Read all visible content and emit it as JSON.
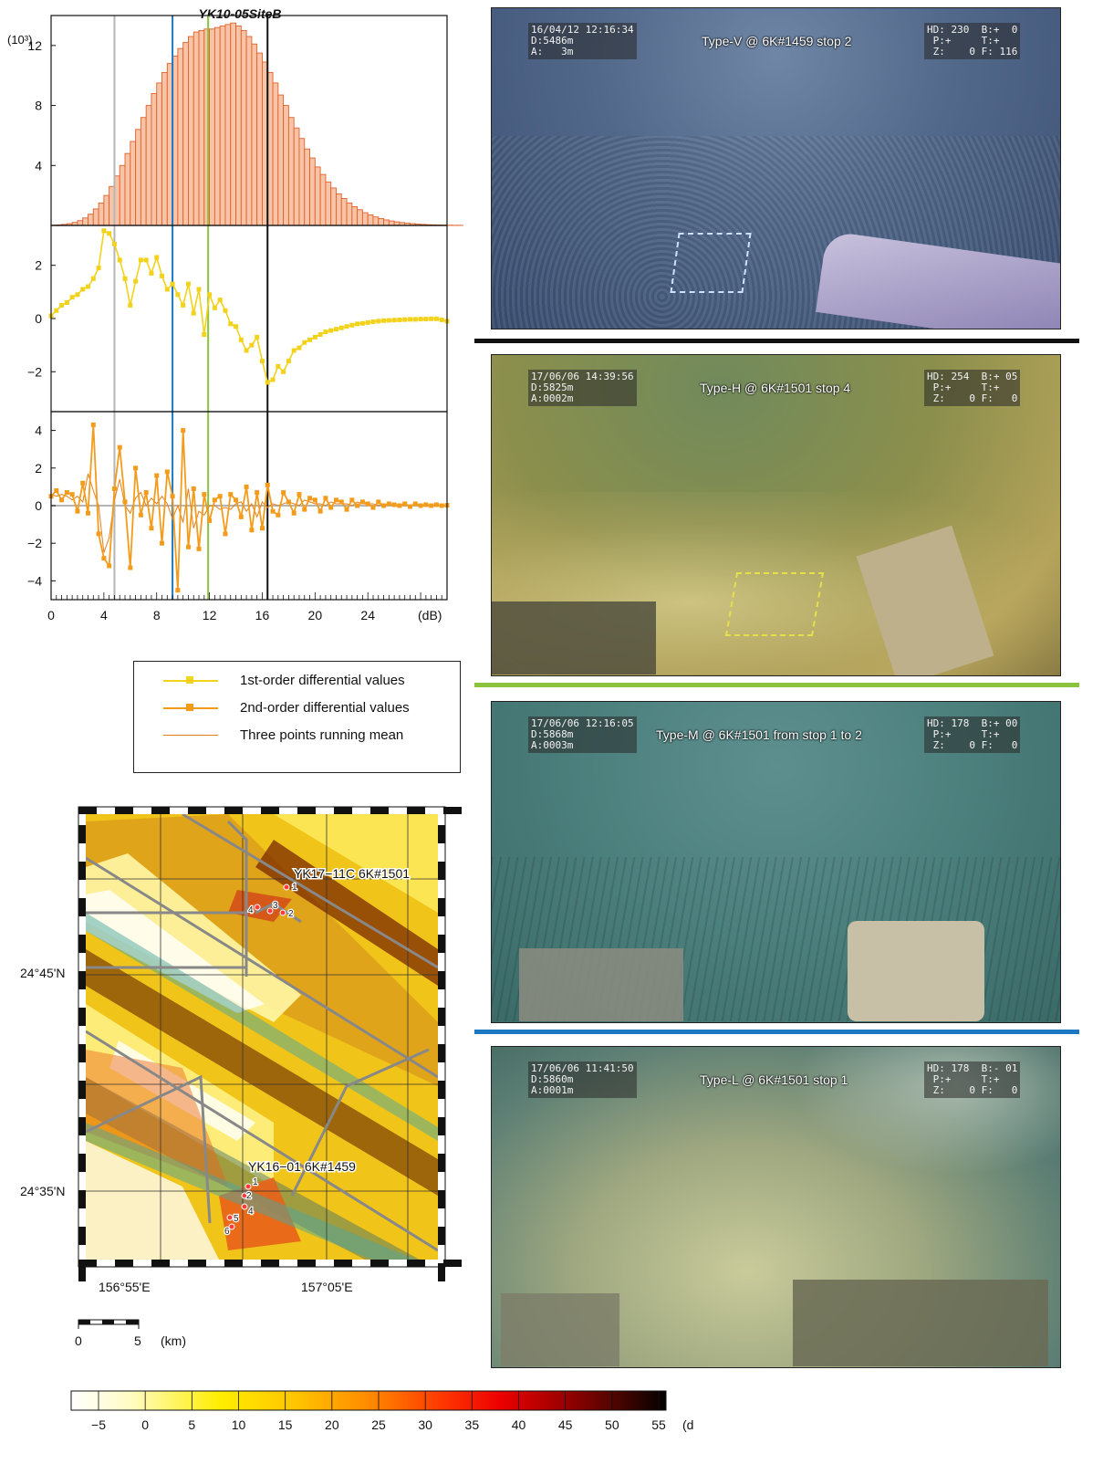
{
  "colors": {
    "hist_fill": "#f7c4a8",
    "hist_stroke": "#e2612a",
    "first_order": "#f2d21b",
    "second_order": "#f39c1c",
    "running_mean": "#e57e1a",
    "line_grey": "#b5b5b5",
    "line_blue": "#1c78c2",
    "line_green": "#8cc33c",
    "line_black": "#111111"
  },
  "chart_data": [
    {
      "type": "bar",
      "title": "YK10-05SiteB",
      "ylabel": "(10³)",
      "ylim": [
        0,
        14
      ],
      "yticks": [
        "4",
        "8",
        "12"
      ],
      "xstart": 0,
      "bin_width": 0.4,
      "values": [
        0.02,
        0.04,
        0.07,
        0.12,
        0.2,
        0.32,
        0.5,
        0.75,
        1.1,
        1.5,
        2.0,
        2.6,
        3.3,
        4.0,
        4.8,
        5.6,
        6.4,
        7.2,
        8.0,
        8.8,
        9.5,
        10.2,
        10.8,
        11.3,
        11.8,
        12.2,
        12.6,
        12.9,
        13.0,
        13.1,
        13.1,
        13.2,
        13.3,
        13.4,
        13.5,
        13.3,
        13.0,
        12.6,
        12.1,
        11.5,
        10.9,
        10.2,
        9.5,
        8.7,
        8.0,
        7.2,
        6.5,
        5.8,
        5.1,
        4.5,
        3.9,
        3.4,
        2.9,
        2.5,
        2.1,
        1.8,
        1.5,
        1.25,
        1.05,
        0.85,
        0.7,
        0.57,
        0.46,
        0.37,
        0.3,
        0.24,
        0.19,
        0.15,
        0.12,
        0.09,
        0.07,
        0.05,
        0.04,
        0.03,
        0.02,
        0.015,
        0.01,
        0.008
      ]
    },
    {
      "type": "line",
      "yticks": [
        "2",
        "0",
        "−2"
      ],
      "ylim": [
        -3.5,
        3.5
      ],
      "series": [
        {
          "name": "1st-order differential values",
          "x": [
            0,
            0.4,
            0.8,
            1.2,
            1.6,
            2.0,
            2.4,
            2.8,
            3.2,
            3.6,
            4.0,
            4.4,
            4.8,
            5.2,
            5.6,
            6.0,
            6.4,
            6.8,
            7.2,
            7.6,
            8.0,
            8.4,
            8.8,
            9.2,
            9.6,
            10.0,
            10.4,
            10.8,
            11.2,
            11.6,
            12.0,
            12.4,
            12.8,
            13.2,
            13.6,
            14.0,
            14.4,
            14.8,
            15.2,
            15.6,
            16.0,
            16.4,
            16.8,
            17.2,
            17.6,
            18.0,
            18.4,
            18.8,
            19.2,
            19.6,
            20.0,
            20.4,
            20.8,
            21.2,
            21.6,
            22.0,
            22.4,
            22.8,
            23.2,
            23.6,
            24.0,
            24.4,
            24.8,
            25.2,
            25.6,
            26.0,
            26.4,
            26.8,
            27.2,
            27.6,
            28.0,
            28.4,
            28.8,
            29.2,
            29.6,
            30.0
          ],
          "values": [
            0.1,
            0.3,
            0.5,
            0.6,
            0.8,
            0.9,
            1.1,
            1.2,
            1.5,
            1.9,
            3.3,
            3.2,
            2.8,
            2.2,
            1.5,
            0.5,
            1.4,
            2.2,
            2.2,
            1.7,
            2.3,
            1.6,
            1.1,
            1.3,
            0.9,
            0.5,
            1.3,
            0.2,
            1.1,
            -0.6,
            0.9,
            0.4,
            0.7,
            0.3,
            -0.2,
            -0.3,
            -0.8,
            -1.2,
            -1.0,
            -0.7,
            -1.6,
            -2.4,
            -2.3,
            -1.8,
            -2.0,
            -1.6,
            -1.2,
            -1.1,
            -0.9,
            -0.8,
            -0.7,
            -0.6,
            -0.5,
            -0.45,
            -0.4,
            -0.35,
            -0.3,
            -0.25,
            -0.2,
            -0.18,
            -0.15,
            -0.12,
            -0.1,
            -0.08,
            -0.07,
            -0.06,
            -0.05,
            -0.04,
            -0.03,
            -0.03,
            -0.02,
            -0.02,
            -0.01,
            -0.01,
            -0.05,
            -0.1
          ]
        }
      ]
    },
    {
      "type": "line",
      "xlabel": "(dB)",
      "xlim": [
        0,
        30
      ],
      "xticks": [
        "0",
        "4",
        "8",
        "12",
        "16",
        "20",
        "24"
      ],
      "yticks": [
        "4",
        "2",
        "0",
        "−2",
        "−4"
      ],
      "ylim": [
        -5,
        5
      ],
      "series": [
        {
          "name": "2nd-order differential values",
          "x": [
            0,
            0.4,
            0.8,
            1.2,
            1.6,
            2.0,
            2.4,
            2.8,
            3.2,
            3.6,
            4.0,
            4.4,
            4.8,
            5.2,
            5.6,
            6.0,
            6.4,
            6.8,
            7.2,
            7.6,
            8.0,
            8.4,
            8.8,
            9.2,
            9.6,
            10.0,
            10.4,
            10.8,
            11.2,
            11.6,
            12.0,
            12.4,
            12.8,
            13.2,
            13.6,
            14.0,
            14.4,
            14.8,
            15.2,
            15.6,
            16.0,
            16.4,
            16.8,
            17.2,
            17.6,
            18.0,
            18.4,
            18.8,
            19.2,
            19.6,
            20.0,
            20.4,
            20.8,
            21.2,
            21.6,
            22.0,
            22.4,
            22.8,
            23.2,
            23.6,
            24.0,
            24.4,
            24.8,
            25.2,
            25.6,
            26.0,
            26.4,
            26.8,
            27.2,
            27.6,
            28.0,
            28.4,
            28.8,
            29.2,
            29.6,
            30.0
          ],
          "values": [
            0.5,
            0.8,
            0.3,
            0.7,
            0.6,
            -0.3,
            1.2,
            -0.4,
            4.3,
            -1.5,
            -2.8,
            -3.2,
            0.9,
            3.1,
            0.2,
            -3.3,
            2.0,
            -0.5,
            0.7,
            -1.2,
            1.6,
            -2.0,
            1.8,
            0.5,
            -4.5,
            4.0,
            -2.2,
            0.9,
            -2.3,
            0.6,
            -0.8,
            0.3,
            0.5,
            -1.5,
            0.6,
            0.3,
            -0.6,
            1.0,
            -1.3,
            0.7,
            -1.2,
            1.1,
            -0.3,
            -0.5,
            0.7,
            0.2,
            -0.4,
            0.6,
            -0.2,
            0.4,
            0.3,
            -0.3,
            0.4,
            -0.1,
            0.3,
            0.2,
            -0.2,
            0.3,
            0.0,
            0.2,
            0.1,
            -0.1,
            0.2,
            0.0,
            0.1,
            0.05,
            0.0,
            0.1,
            -0.05,
            0.1,
            0.0,
            0.05,
            0.0,
            0.05,
            0.0,
            0.02
          ]
        },
        {
          "name": "Three points running mean",
          "x": [
            0,
            0.4,
            0.8,
            1.2,
            1.6,
            2.0,
            2.4,
            2.8,
            3.2,
            3.6,
            4.0,
            4.4,
            4.8,
            5.2,
            5.6,
            6.0,
            6.4,
            6.8,
            7.2,
            7.6,
            8.0,
            8.4,
            8.8,
            9.2,
            9.6,
            10.0,
            10.4,
            10.8,
            11.2,
            11.6,
            12.0,
            12.4,
            12.8,
            13.2,
            13.6,
            14.0,
            14.4,
            14.8,
            15.2,
            15.6,
            16.0,
            16.4,
            16.8,
            17.2,
            17.6,
            18.0,
            18.4,
            18.8,
            19.2,
            19.6,
            20.0,
            20.4,
            20.8,
            21.2,
            21.6,
            22.0,
            22.4,
            22.8,
            23.2,
            23.6,
            24.0,
            24.4,
            24.8,
            25.2,
            25.6,
            26.0,
            26.4,
            26.8,
            27.2,
            27.6,
            28.0,
            28.4,
            28.8,
            29.2,
            29.6,
            30.0
          ],
          "values": [
            0.6,
            0.5,
            0.6,
            0.5,
            0.3,
            0.5,
            0.2,
            1.7,
            0.8,
            0.0,
            -2.5,
            -1.7,
            0.3,
            1.4,
            0.0,
            -0.4,
            0.4,
            0.7,
            0.0,
            0.4,
            0.1,
            0.5,
            0.1,
            -0.7,
            0.0,
            -0.9,
            0.9,
            -1.2,
            -0.3,
            -0.5,
            0.0,
            0.0,
            -0.2,
            -0.1,
            -0.2,
            0.1,
            0.2,
            -0.3,
            0.1,
            -0.6,
            0.2,
            -0.1,
            0.1,
            0.0,
            0.1,
            0.2,
            0.1,
            0.0,
            0.3,
            0.2,
            0.1,
            0.1,
            0.0,
            0.2,
            0.1,
            0.1,
            0.1,
            0.0,
            0.2,
            0.1,
            0.1,
            0.1,
            0.0,
            0.1,
            0.05,
            0.05,
            0.05,
            0.02,
            0.05,
            0.02,
            0.05,
            0.02,
            0.02,
            0.02,
            0.02,
            0.01
          ]
        }
      ]
    }
  ],
  "vlines": [
    {
      "x": 4.8,
      "color": "#b5b5b5"
    },
    {
      "x": 9.2,
      "color": "#1c78c2"
    },
    {
      "x": 11.9,
      "color": "#8cc33c"
    },
    {
      "x": 16.4,
      "color": "#111111"
    }
  ],
  "legend": [
    "1st-order differential values",
    "2nd-order differential values",
    "Three points running mean"
  ],
  "map": {
    "lat_labels": [
      "24°45'N",
      "24°35'N"
    ],
    "lon_labels": [
      "156°55'E",
      "157°05'E"
    ],
    "site_a": "YK17−11C 6K#1501",
    "site_b": "YK16−01 6K#1459",
    "stops_a": [
      "1",
      "2",
      "3",
      "4"
    ],
    "stops_b": [
      "1",
      "2",
      "4",
      "5",
      "6"
    ],
    "scale_ticks": [
      "0",
      "5"
    ],
    "scale_unit": "(km)"
  },
  "colorbar": {
    "ticks": [
      "−5",
      "0",
      "5",
      "10",
      "15",
      "20",
      "25",
      "30",
      "35",
      "40",
      "45",
      "50",
      "55"
    ],
    "unit": "(dB)"
  },
  "photos": [
    {
      "caption": "Type-V @ 6K#1459  stop 2",
      "osd_left": "16/04/12 12:16:34\nD:5486m\nA:   3m",
      "osd_right": "HD: 230  B:+  0\n P:+     T:+\n Z:    0 F: 116",
      "separator": "#111111"
    },
    {
      "caption": "Type-H @ 6K#1501  stop 4",
      "osd_left": "17/06/06 14:39:56\nD:5825m\nA:0002m",
      "osd_right": "HD: 254  B:+ 05\n P:+     T:+\n Z:    0 F:   0",
      "separator": "#8cc33c"
    },
    {
      "caption": "Type-M @ 6K#1501 from stop 1 to 2",
      "osd_left": "17/06/06 12:16:05\nD:5868m\nA:0003m",
      "osd_right": "HD: 178  B:+ 00\n P:+     T:+\n Z:    0 F:   0",
      "separator": "#1c78c2"
    },
    {
      "caption": "Type-L @ 6K#1501  stop 1",
      "osd_left": "17/06/06 11:41:50\nD:5860m\nA:0001m",
      "osd_right": "HD: 178  B:- 01\n P:+     T:+\n Z:    0 F:   0"
    }
  ]
}
